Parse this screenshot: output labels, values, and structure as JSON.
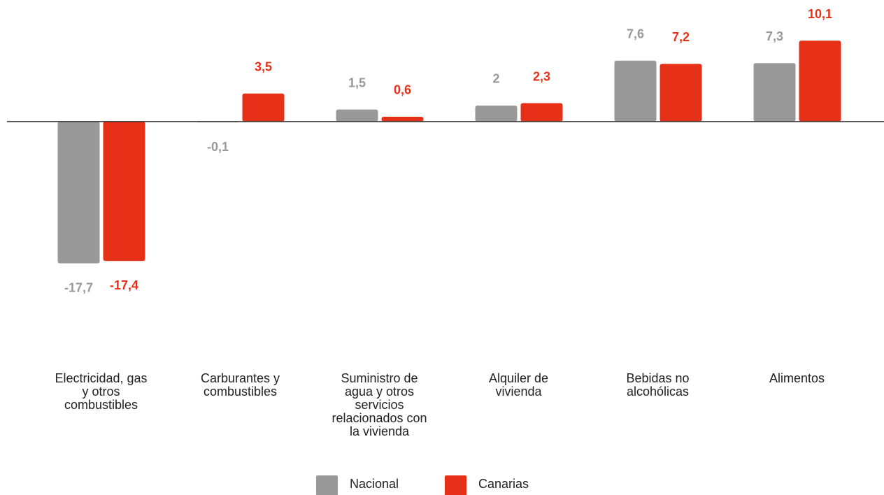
{
  "chart_data": {
    "type": "bar",
    "categories": [
      "Electricidad, gas y otros combustibles",
      "Carburantes y combustibles",
      "Suministro de agua y otros servicios relacionados con la vivienda",
      "Alquiler de vivienda",
      "Bebidas no alcohólicas",
      "Alimentos"
    ],
    "series": [
      {
        "name": "Nacional",
        "color": "#999999",
        "values": [
          -17.7,
          -0.1,
          1.5,
          2,
          7.6,
          7.3
        ],
        "value_labels": [
          "-17,7",
          "-0,1",
          "1,5",
          "2",
          "7,6",
          "7,3"
        ]
      },
      {
        "name": "Canarias",
        "color": "#e63118",
        "values": [
          -17.4,
          3.5,
          0.6,
          2.3,
          7.2,
          10.1
        ],
        "value_labels": [
          "-17,4",
          "3,5",
          "0,6",
          "2,3",
          "7,2",
          "10,1"
        ]
      }
    ],
    "ylim": [
      -20,
      15
    ]
  }
}
